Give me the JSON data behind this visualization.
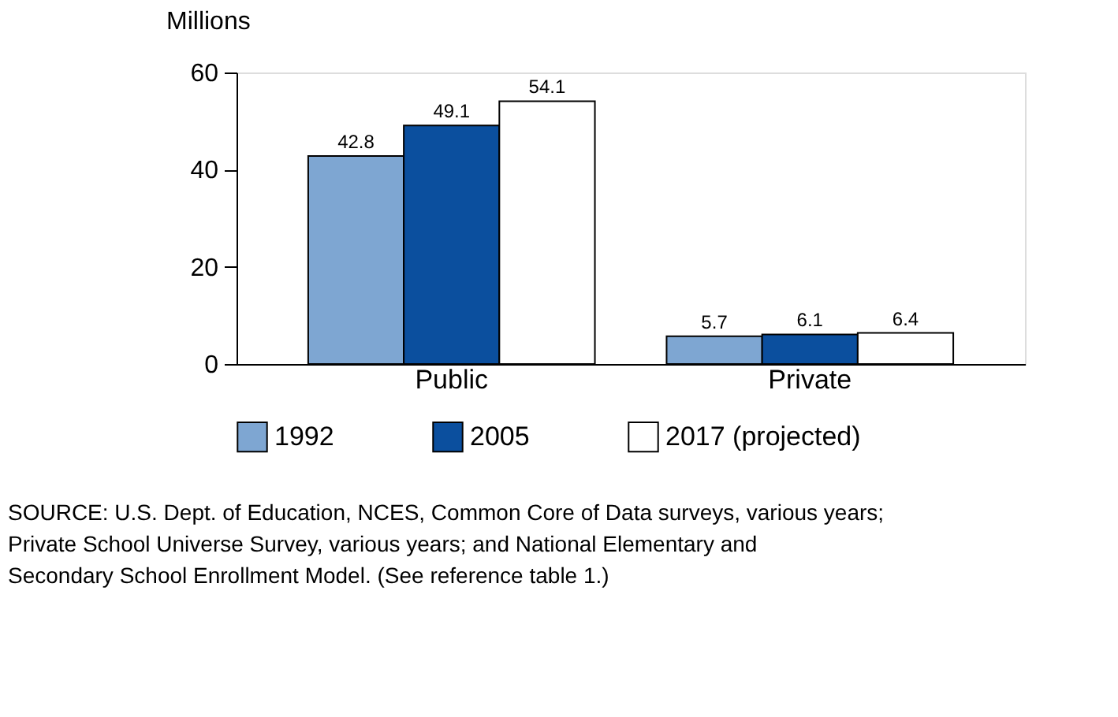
{
  "chart_data": {
    "type": "bar",
    "ylabel": "Millions",
    "categories": [
      "Public",
      "Private"
    ],
    "series": [
      {
        "name": "1992",
        "color": "#7ea6d2",
        "values": [
          42.8,
          5.7
        ]
      },
      {
        "name": "2005",
        "color": "#0b4f9e",
        "values": [
          49.1,
          6.1
        ]
      },
      {
        "name": "2017 (projected)",
        "color": "#ffffff",
        "values": [
          54.1,
          6.4
        ]
      }
    ],
    "ylim": [
      0,
      60
    ],
    "yticks": [
      0,
      20,
      40,
      60
    ],
    "grid": false,
    "legend": "bottom",
    "data_labels": true,
    "annotations": [
      "SOURCE: U.S. Dept. of Education, NCES, Common Core of Data surveys, various years; Private School Universe Survey, various years; and National Elementary and Secondary School Enrollment Model. (See reference table 1.)"
    ]
  }
}
